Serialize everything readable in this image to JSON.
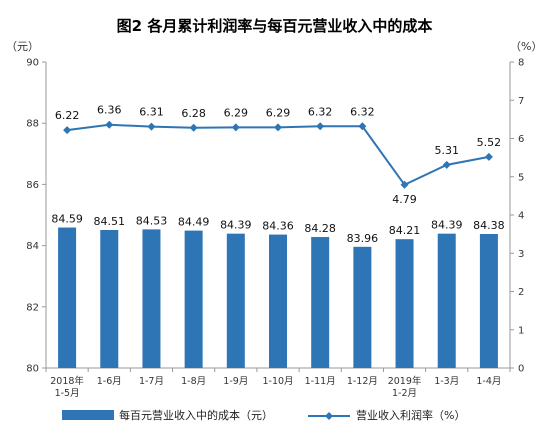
{
  "chart_data": {
    "type": "bar+line",
    "title": "图2  各月累计利润率与每百元营业收入中的成本",
    "y_left_unit": "（元）",
    "y_right_unit": "（%）",
    "y_left_range": [
      80,
      90
    ],
    "y_left_ticks": [
      "80",
      "82",
      "84",
      "86",
      "88",
      "90"
    ],
    "y_right_range": [
      0,
      8
    ],
    "y_right_ticks": [
      "0",
      "1",
      "2",
      "3",
      "4",
      "5",
      "6",
      "7",
      "8"
    ],
    "categories": [
      [
        "2018年",
        "1-5月"
      ],
      [
        "1-6月"
      ],
      [
        "1-7月"
      ],
      [
        "1-8月"
      ],
      [
        "1-9月"
      ],
      [
        "1-10月"
      ],
      [
        "1-11月"
      ],
      [
        "1-12月"
      ],
      [
        "2019年",
        "1-2月"
      ],
      [
        "1-3月"
      ],
      [
        "1-4月"
      ]
    ],
    "series": [
      {
        "name": "每百元营业收入中的成本（元）",
        "kind": "bar",
        "axis": "left",
        "color": "#2E75B6",
        "values": [
          84.59,
          84.51,
          84.53,
          84.49,
          84.39,
          84.36,
          84.28,
          83.96,
          84.21,
          84.39,
          84.38
        ],
        "labels": [
          "84.59",
          "84.51",
          "84.53",
          "84.49",
          "84.39",
          "84.36",
          "84.28",
          "83.96",
          "84.21",
          "84.39",
          "84.38"
        ]
      },
      {
        "name": "营业收入利润率（%）",
        "kind": "line",
        "axis": "right",
        "color": "#2E75B6",
        "values": [
          6.22,
          6.36,
          6.31,
          6.28,
          6.29,
          6.29,
          6.32,
          6.32,
          4.79,
          5.31,
          5.52
        ],
        "labels": [
          "6.22",
          "6.36",
          "6.31",
          "6.28",
          "6.29",
          "6.29",
          "6.32",
          "6.32",
          "4.79",
          "5.31",
          "5.52"
        ]
      }
    ]
  }
}
